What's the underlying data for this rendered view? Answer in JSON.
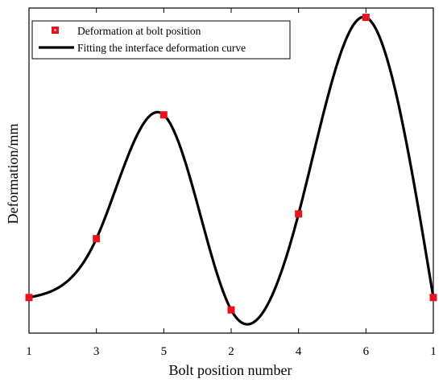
{
  "chart_data": {
    "type": "line",
    "xlabel": "Bolt position number",
    "ylabel": "Deformation/mm",
    "categories": [
      "1",
      "3",
      "5",
      "2",
      "4",
      "6",
      "1"
    ],
    "yticks_shown": false,
    "ylim": [
      0,
      1
    ],
    "grid": false,
    "legend_position": "top-left",
    "series": [
      {
        "name": "Deformation at bolt position",
        "kind": "scatter",
        "marker": "square",
        "color": "#e8141b",
        "values": [
          0.115,
          0.305,
          0.705,
          0.075,
          0.385,
          1.02,
          0.115
        ]
      },
      {
        "name": "Fitting the interface deformation curve",
        "kind": "smooth-line",
        "color": "#000000",
        "values": [
          0.115,
          0.305,
          0.705,
          0.075,
          0.385,
          1.02,
          0.115
        ]
      }
    ]
  }
}
